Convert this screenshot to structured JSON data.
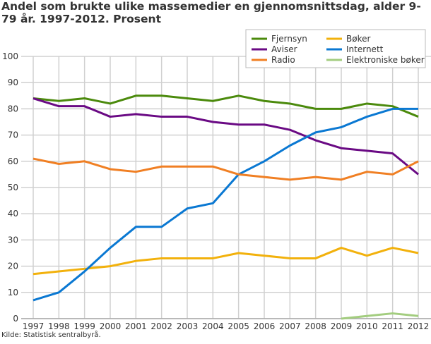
{
  "chart_data": {
    "type": "line",
    "title": "Andel som brukte ulike massemedier en gjennomsnittsdag, alder 9-79 år. 1997-2012. Prosent",
    "source": "Kilde: Statistisk sentralbyrå.",
    "x": [
      1997,
      1998,
      1999,
      2000,
      2001,
      2002,
      2003,
      2004,
      2005,
      2006,
      2007,
      2008,
      2009,
      2010,
      2011,
      2012
    ],
    "ylim": [
      0,
      100
    ],
    "yticks": [
      0,
      10,
      20,
      30,
      40,
      50,
      60,
      70,
      80,
      90,
      100
    ],
    "grid": true,
    "legend_placement": "top-right",
    "series": [
      {
        "name": "Fjernsyn",
        "color": "#4b8a0c",
        "values": [
          84,
          83,
          84,
          82,
          85,
          85,
          84,
          83,
          85,
          83,
          82,
          80,
          80,
          82,
          81,
          77
        ]
      },
      {
        "name": "Bøker",
        "color": "#f2b10c",
        "values": [
          17,
          18,
          19,
          20,
          22,
          23,
          23,
          23,
          25,
          24,
          23,
          23,
          27,
          24,
          27,
          25
        ]
      },
      {
        "name": "Aviser",
        "color": "#6a0a84",
        "values": [
          84,
          81,
          81,
          77,
          78,
          77,
          77,
          75,
          74,
          74,
          72,
          68,
          65,
          64,
          63,
          55
        ]
      },
      {
        "name": "Internett",
        "color": "#0a78d2",
        "values": [
          7,
          10,
          18,
          27,
          35,
          35,
          42,
          44,
          55,
          60,
          66,
          71,
          73,
          77,
          80,
          80
        ]
      },
      {
        "name": "Radio",
        "color": "#f07f23",
        "values": [
          61,
          59,
          60,
          57,
          56,
          58,
          58,
          58,
          55,
          54,
          53,
          54,
          53,
          56,
          55,
          60
        ]
      },
      {
        "name": "Elektroniske bøker",
        "color": "#a3cd7f",
        "values": [
          null,
          null,
          null,
          null,
          null,
          null,
          null,
          null,
          null,
          null,
          null,
          null,
          0,
          1,
          2,
          1
        ]
      }
    ]
  }
}
